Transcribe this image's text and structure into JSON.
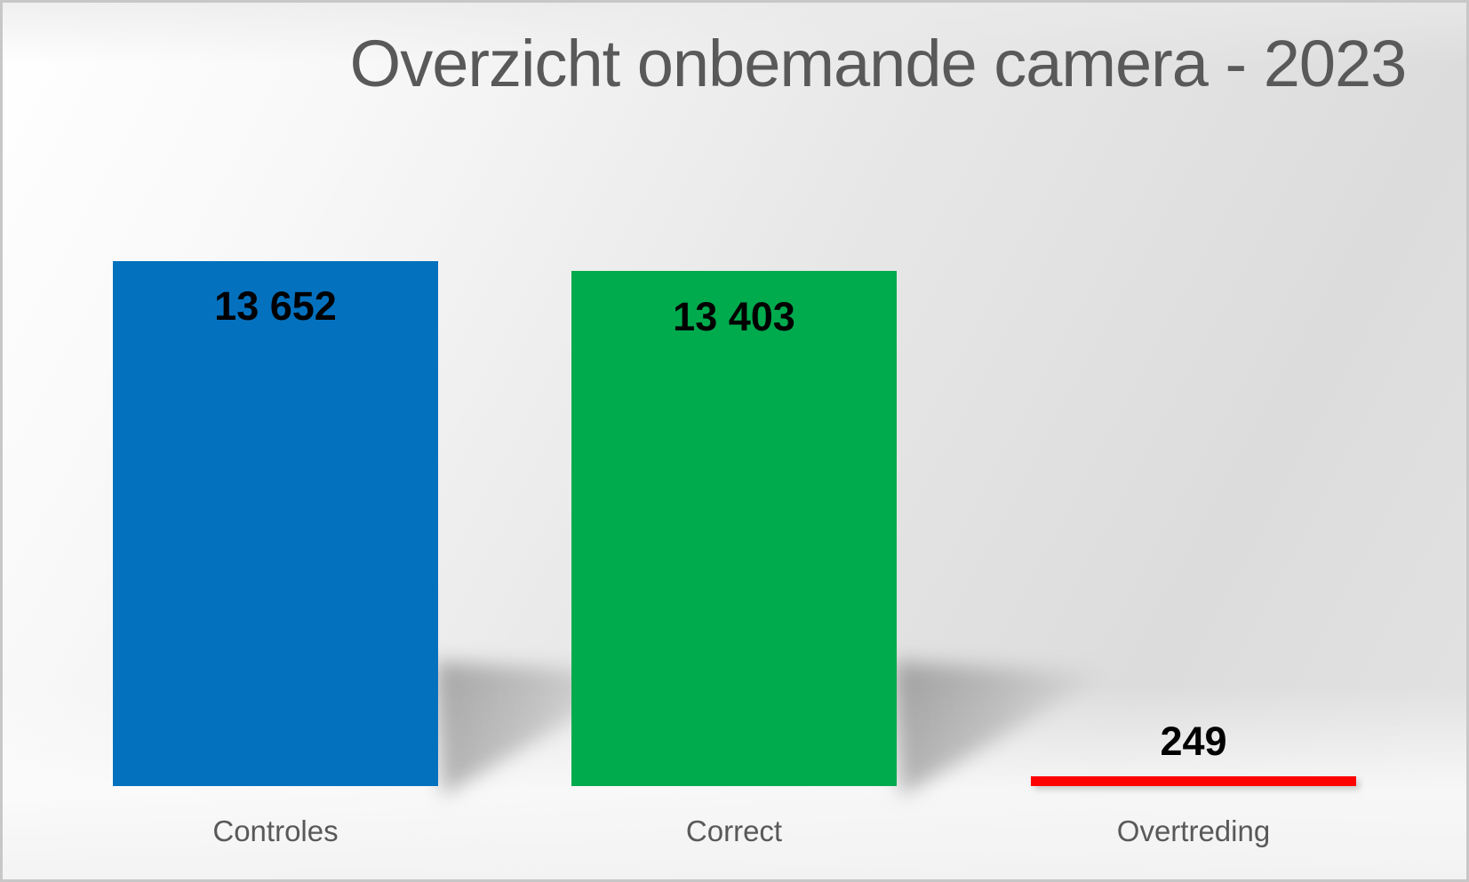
{
  "chart_data": {
    "type": "bar",
    "title": "Overzicht onbemande camera - 2023",
    "categories": [
      "Controles",
      "Correct",
      "Overtreding"
    ],
    "values": [
      13652,
      13403,
      249
    ],
    "value_labels": [
      "13 652",
      "13 403",
      "249"
    ],
    "series_colors": [
      "#0471be",
      "#00ab4e",
      "#ff0000"
    ],
    "xlabel": "",
    "ylabel": "",
    "ylim": [
      0,
      13652
    ],
    "grid": false,
    "legend": false,
    "axes_visible": false,
    "title_color": "#595959",
    "category_label_color": "#595959",
    "value_label_color": "#000000",
    "background": "gray-gradient"
  }
}
